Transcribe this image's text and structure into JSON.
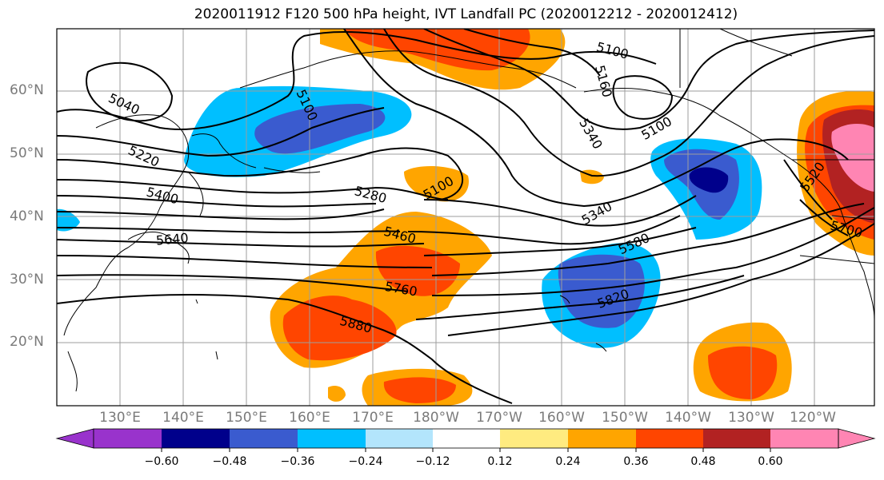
{
  "title": "2020011912 F120 500 hPa height, IVT Landfall PC (2020012212 - 2020012412)",
  "lat_labels": [
    "60°N",
    "50°N",
    "40°N",
    "30°N",
    "20°N"
  ],
  "lon_labels": [
    "130°E",
    "140°E",
    "150°E",
    "160°E",
    "170°E",
    "180°W",
    "170°W",
    "160°W",
    "150°W",
    "140°W",
    "130°W",
    "120°W"
  ],
  "contour_labels": [
    "5040",
    "5220",
    "5400",
    "5640",
    "5100",
    "5280",
    "5460",
    "5760",
    "5880",
    "5100",
    "5160",
    "5340",
    "5100",
    "5340",
    "5580",
    "5820",
    "5520",
    "5700"
  ],
  "colorbar": {
    "ticks": [
      "−0.60",
      "−0.48",
      "−0.36",
      "−0.24",
      "−0.12",
      "0.12",
      "0.24",
      "0.36",
      "0.48",
      "0.60"
    ],
    "colors": [
      "#9933cc",
      "#00008b",
      "#3a5bcf",
      "#00bfff",
      "#b3e5fc",
      "#ffffff",
      "#ffeb80",
      "#ffa500",
      "#ff4500",
      "#b22222",
      "#ff85b3"
    ]
  }
}
